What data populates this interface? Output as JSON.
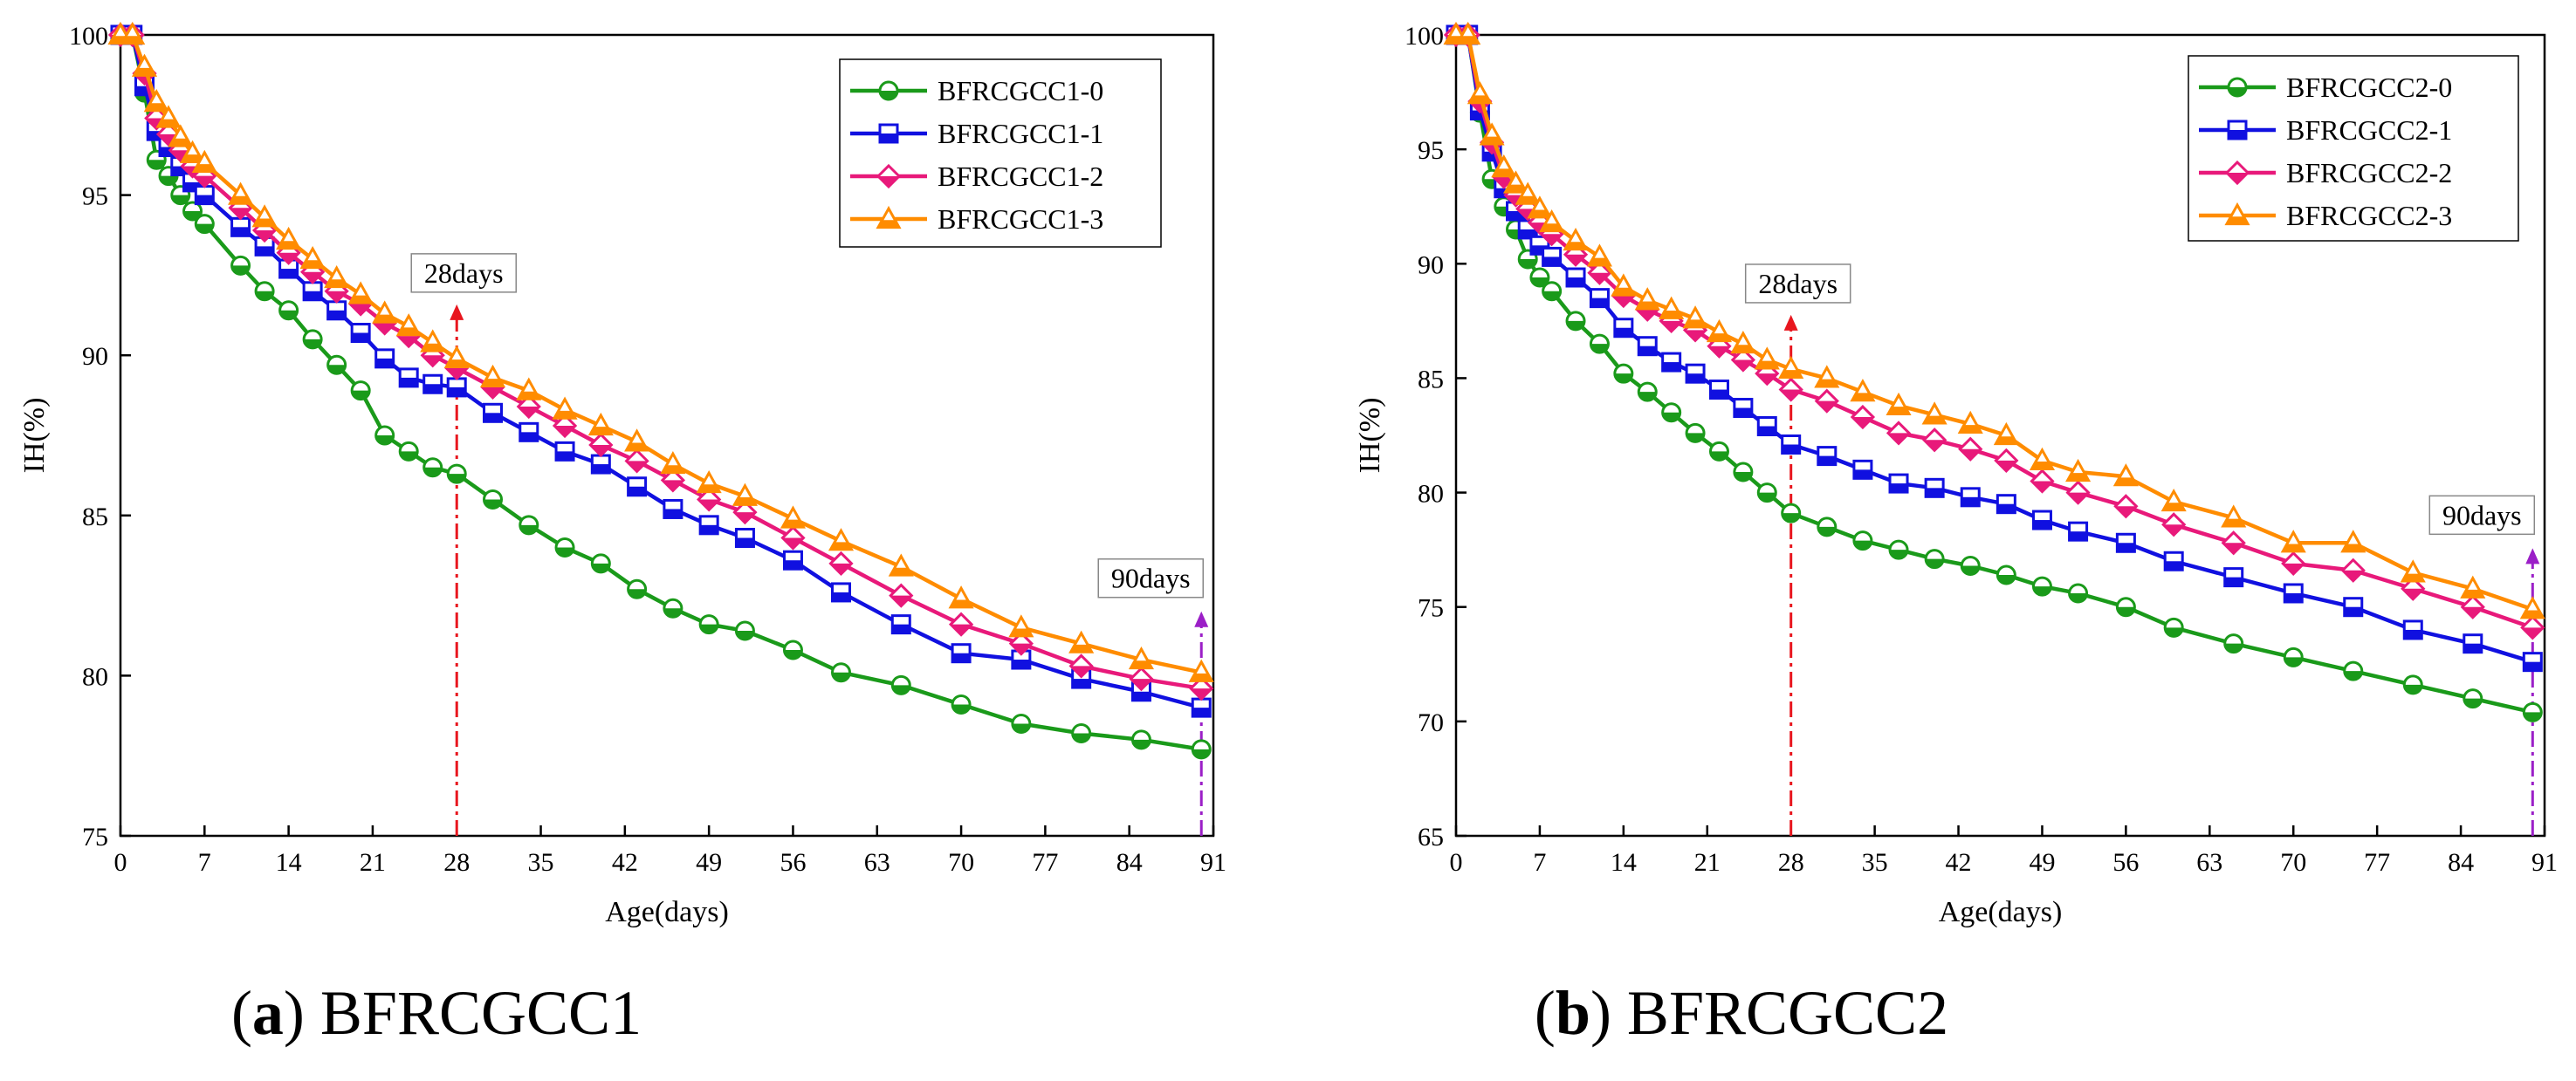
{
  "chart_data": [
    {
      "type": "line",
      "panel_letter": "a",
      "caption": "BFRCGCC1",
      "xlabel": "Age(days)",
      "ylabel": "IH(%)",
      "xlim": [
        0,
        91
      ],
      "ylim": [
        75,
        100
      ],
      "xticks": [
        0,
        7,
        14,
        21,
        28,
        35,
        42,
        49,
        56,
        63,
        70,
        77,
        84,
        91
      ],
      "yticks": [
        75,
        80,
        85,
        90,
        95,
        100
      ],
      "legend_position": "top-right",
      "annotations": [
        {
          "text": "28days",
          "x": 28,
          "color": "#e8161e"
        },
        {
          "text": "90days",
          "x": 90,
          "color": "#9b1fc7"
        }
      ],
      "series": [
        {
          "name": "BFRCGCC1-0",
          "color": "#1a9a1a",
          "marker": "circle",
          "x": [
            0,
            1,
            2,
            3,
            4,
            5,
            6,
            7,
            10,
            12,
            14,
            16,
            18,
            20,
            22,
            24,
            26,
            28,
            31,
            34,
            37,
            40,
            43,
            46,
            49,
            52,
            56,
            60,
            65,
            70,
            75,
            80,
            85,
            90
          ],
          "y": [
            100,
            100,
            98.2,
            96.1,
            95.6,
            95.0,
            94.5,
            94.1,
            92.8,
            92.0,
            91.4,
            90.5,
            89.7,
            88.9,
            87.5,
            87.0,
            86.5,
            86.3,
            85.5,
            84.7,
            84.0,
            83.5,
            82.7,
            82.1,
            81.6,
            81.4,
            80.8,
            80.1,
            79.7,
            79.1,
            78.5,
            78.2,
            78.0,
            77.7
          ]
        },
        {
          "name": "BFRCGCC1-1",
          "color": "#1010e0",
          "marker": "square",
          "x": [
            0,
            1,
            2,
            3,
            4,
            5,
            6,
            7,
            10,
            12,
            14,
            16,
            18,
            20,
            22,
            24,
            26,
            28,
            31,
            34,
            37,
            40,
            43,
            46,
            49,
            52,
            56,
            60,
            65,
            70,
            75,
            80,
            85,
            90
          ],
          "y": [
            100,
            100,
            98.4,
            97.0,
            96.5,
            95.9,
            95.4,
            95.0,
            94.0,
            93.4,
            92.7,
            92.0,
            91.4,
            90.7,
            89.9,
            89.3,
            89.1,
            89.0,
            88.2,
            87.6,
            87.0,
            86.6,
            85.9,
            85.2,
            84.7,
            84.3,
            83.6,
            82.6,
            81.6,
            80.7,
            80.5,
            79.9,
            79.5,
            79.0
          ]
        },
        {
          "name": "BFRCGCC1-2",
          "color": "#e8197a",
          "marker": "diamond",
          "x": [
            0,
            1,
            2,
            3,
            4,
            5,
            6,
            7,
            10,
            12,
            14,
            16,
            18,
            20,
            22,
            24,
            26,
            28,
            31,
            34,
            37,
            40,
            43,
            46,
            49,
            52,
            56,
            60,
            65,
            70,
            75,
            80,
            85,
            90
          ],
          "y": [
            100,
            100,
            98.8,
            97.4,
            96.9,
            96.4,
            95.9,
            95.6,
            94.6,
            93.9,
            93.2,
            92.6,
            92.0,
            91.6,
            91.0,
            90.6,
            90.0,
            89.6,
            89.0,
            88.4,
            87.8,
            87.2,
            86.7,
            86.1,
            85.5,
            85.1,
            84.3,
            83.5,
            82.5,
            81.6,
            81.0,
            80.3,
            79.9,
            79.6
          ]
        },
        {
          "name": "BFRCGCC1-3",
          "color": "#ff8c00",
          "marker": "triangle",
          "x": [
            0,
            1,
            2,
            3,
            4,
            5,
            6,
            7,
            10,
            12,
            14,
            16,
            18,
            20,
            22,
            24,
            26,
            28,
            31,
            34,
            37,
            40,
            43,
            46,
            49,
            52,
            56,
            60,
            65,
            70,
            75,
            80,
            85,
            90
          ],
          "y": [
            100,
            100,
            99.0,
            97.9,
            97.4,
            96.8,
            96.3,
            96.0,
            95.0,
            94.3,
            93.6,
            93.0,
            92.4,
            91.9,
            91.3,
            90.9,
            90.4,
            89.9,
            89.3,
            88.9,
            88.3,
            87.8,
            87.3,
            86.6,
            86.0,
            85.6,
            84.9,
            84.2,
            83.4,
            82.4,
            81.5,
            81.0,
            80.5,
            80.1
          ]
        }
      ]
    },
    {
      "type": "line",
      "panel_letter": "b",
      "caption": "BFRCGCC2",
      "xlabel": "Age(days)",
      "ylabel": "IH(%)",
      "xlim": [
        0,
        91
      ],
      "ylim": [
        65,
        100
      ],
      "xticks": [
        0,
        7,
        14,
        21,
        28,
        35,
        42,
        49,
        56,
        63,
        70,
        77,
        84,
        91
      ],
      "yticks": [
        65,
        70,
        75,
        80,
        85,
        90,
        95,
        100
      ],
      "legend_position": "top-right",
      "annotations": [
        {
          "text": "28days",
          "x": 28,
          "color": "#e8161e"
        },
        {
          "text": "90days",
          "x": 90,
          "color": "#9b1fc7"
        }
      ],
      "series": [
        {
          "name": "BFRCGCC2-0",
          "color": "#1a9a1a",
          "marker": "circle",
          "x": [
            0,
            1,
            2,
            3,
            4,
            5,
            6,
            7,
            8,
            10,
            12,
            14,
            16,
            18,
            20,
            22,
            24,
            26,
            28,
            31,
            34,
            37,
            40,
            43,
            46,
            49,
            52,
            56,
            60,
            65,
            70,
            75,
            80,
            85,
            90
          ],
          "y": [
            100,
            100,
            96.6,
            93.7,
            92.5,
            91.5,
            90.2,
            89.4,
            88.8,
            87.5,
            86.5,
            85.2,
            84.4,
            83.5,
            82.6,
            81.8,
            80.9,
            80.0,
            79.1,
            78.5,
            77.9,
            77.5,
            77.1,
            76.8,
            76.4,
            75.9,
            75.6,
            75.0,
            74.1,
            73.4,
            72.8,
            72.2,
            71.6,
            71.0,
            70.4
          ]
        },
        {
          "name": "BFRCGCC2-1",
          "color": "#1010e0",
          "marker": "square",
          "x": [
            0,
            1,
            2,
            3,
            4,
            5,
            6,
            7,
            8,
            10,
            12,
            14,
            16,
            18,
            20,
            22,
            24,
            26,
            28,
            31,
            34,
            37,
            40,
            43,
            46,
            49,
            52,
            56,
            60,
            65,
            70,
            75,
            80,
            85,
            90
          ],
          "y": [
            100,
            100,
            96.7,
            94.9,
            93.3,
            92.3,
            91.5,
            90.8,
            90.3,
            89.4,
            88.5,
            87.2,
            86.4,
            85.7,
            85.2,
            84.5,
            83.7,
            82.9,
            82.1,
            81.6,
            81.0,
            80.4,
            80.2,
            79.8,
            79.5,
            78.8,
            78.3,
            77.8,
            77.0,
            76.3,
            75.6,
            75.0,
            74.0,
            73.4,
            72.6
          ]
        },
        {
          "name": "BFRCGCC2-2",
          "color": "#e8197a",
          "marker": "diamond",
          "x": [
            0,
            1,
            2,
            3,
            4,
            5,
            6,
            7,
            8,
            10,
            12,
            14,
            16,
            18,
            20,
            22,
            24,
            26,
            28,
            31,
            34,
            37,
            40,
            43,
            46,
            49,
            52,
            56,
            60,
            65,
            70,
            75,
            80,
            85,
            90
          ],
          "y": [
            100,
            100,
            97.1,
            95.3,
            93.8,
            93.0,
            92.4,
            91.8,
            91.3,
            90.4,
            89.6,
            88.6,
            88.0,
            87.5,
            87.1,
            86.4,
            85.8,
            85.2,
            84.5,
            84.0,
            83.3,
            82.6,
            82.3,
            81.9,
            81.4,
            80.5,
            80.0,
            79.4,
            78.6,
            77.8,
            76.9,
            76.6,
            75.8,
            75.0,
            74.1
          ]
        },
        {
          "name": "BFRCGCC2-3",
          "color": "#ff8c00",
          "marker": "triangle",
          "x": [
            0,
            1,
            2,
            3,
            4,
            5,
            6,
            7,
            8,
            10,
            12,
            14,
            16,
            18,
            20,
            22,
            24,
            26,
            28,
            31,
            34,
            37,
            40,
            43,
            46,
            49,
            52,
            56,
            60,
            65,
            70,
            75,
            80,
            85,
            90
          ],
          "y": [
            100,
            100,
            97.4,
            95.6,
            94.2,
            93.5,
            93.0,
            92.4,
            91.8,
            91.0,
            90.3,
            89.0,
            88.4,
            88.0,
            87.6,
            87.0,
            86.5,
            85.8,
            85.4,
            85.0,
            84.4,
            83.8,
            83.4,
            83.0,
            82.5,
            81.4,
            80.9,
            80.7,
            79.6,
            78.9,
            77.8,
            77.8,
            76.5,
            75.8,
            74.9
          ]
        }
      ]
    }
  ]
}
